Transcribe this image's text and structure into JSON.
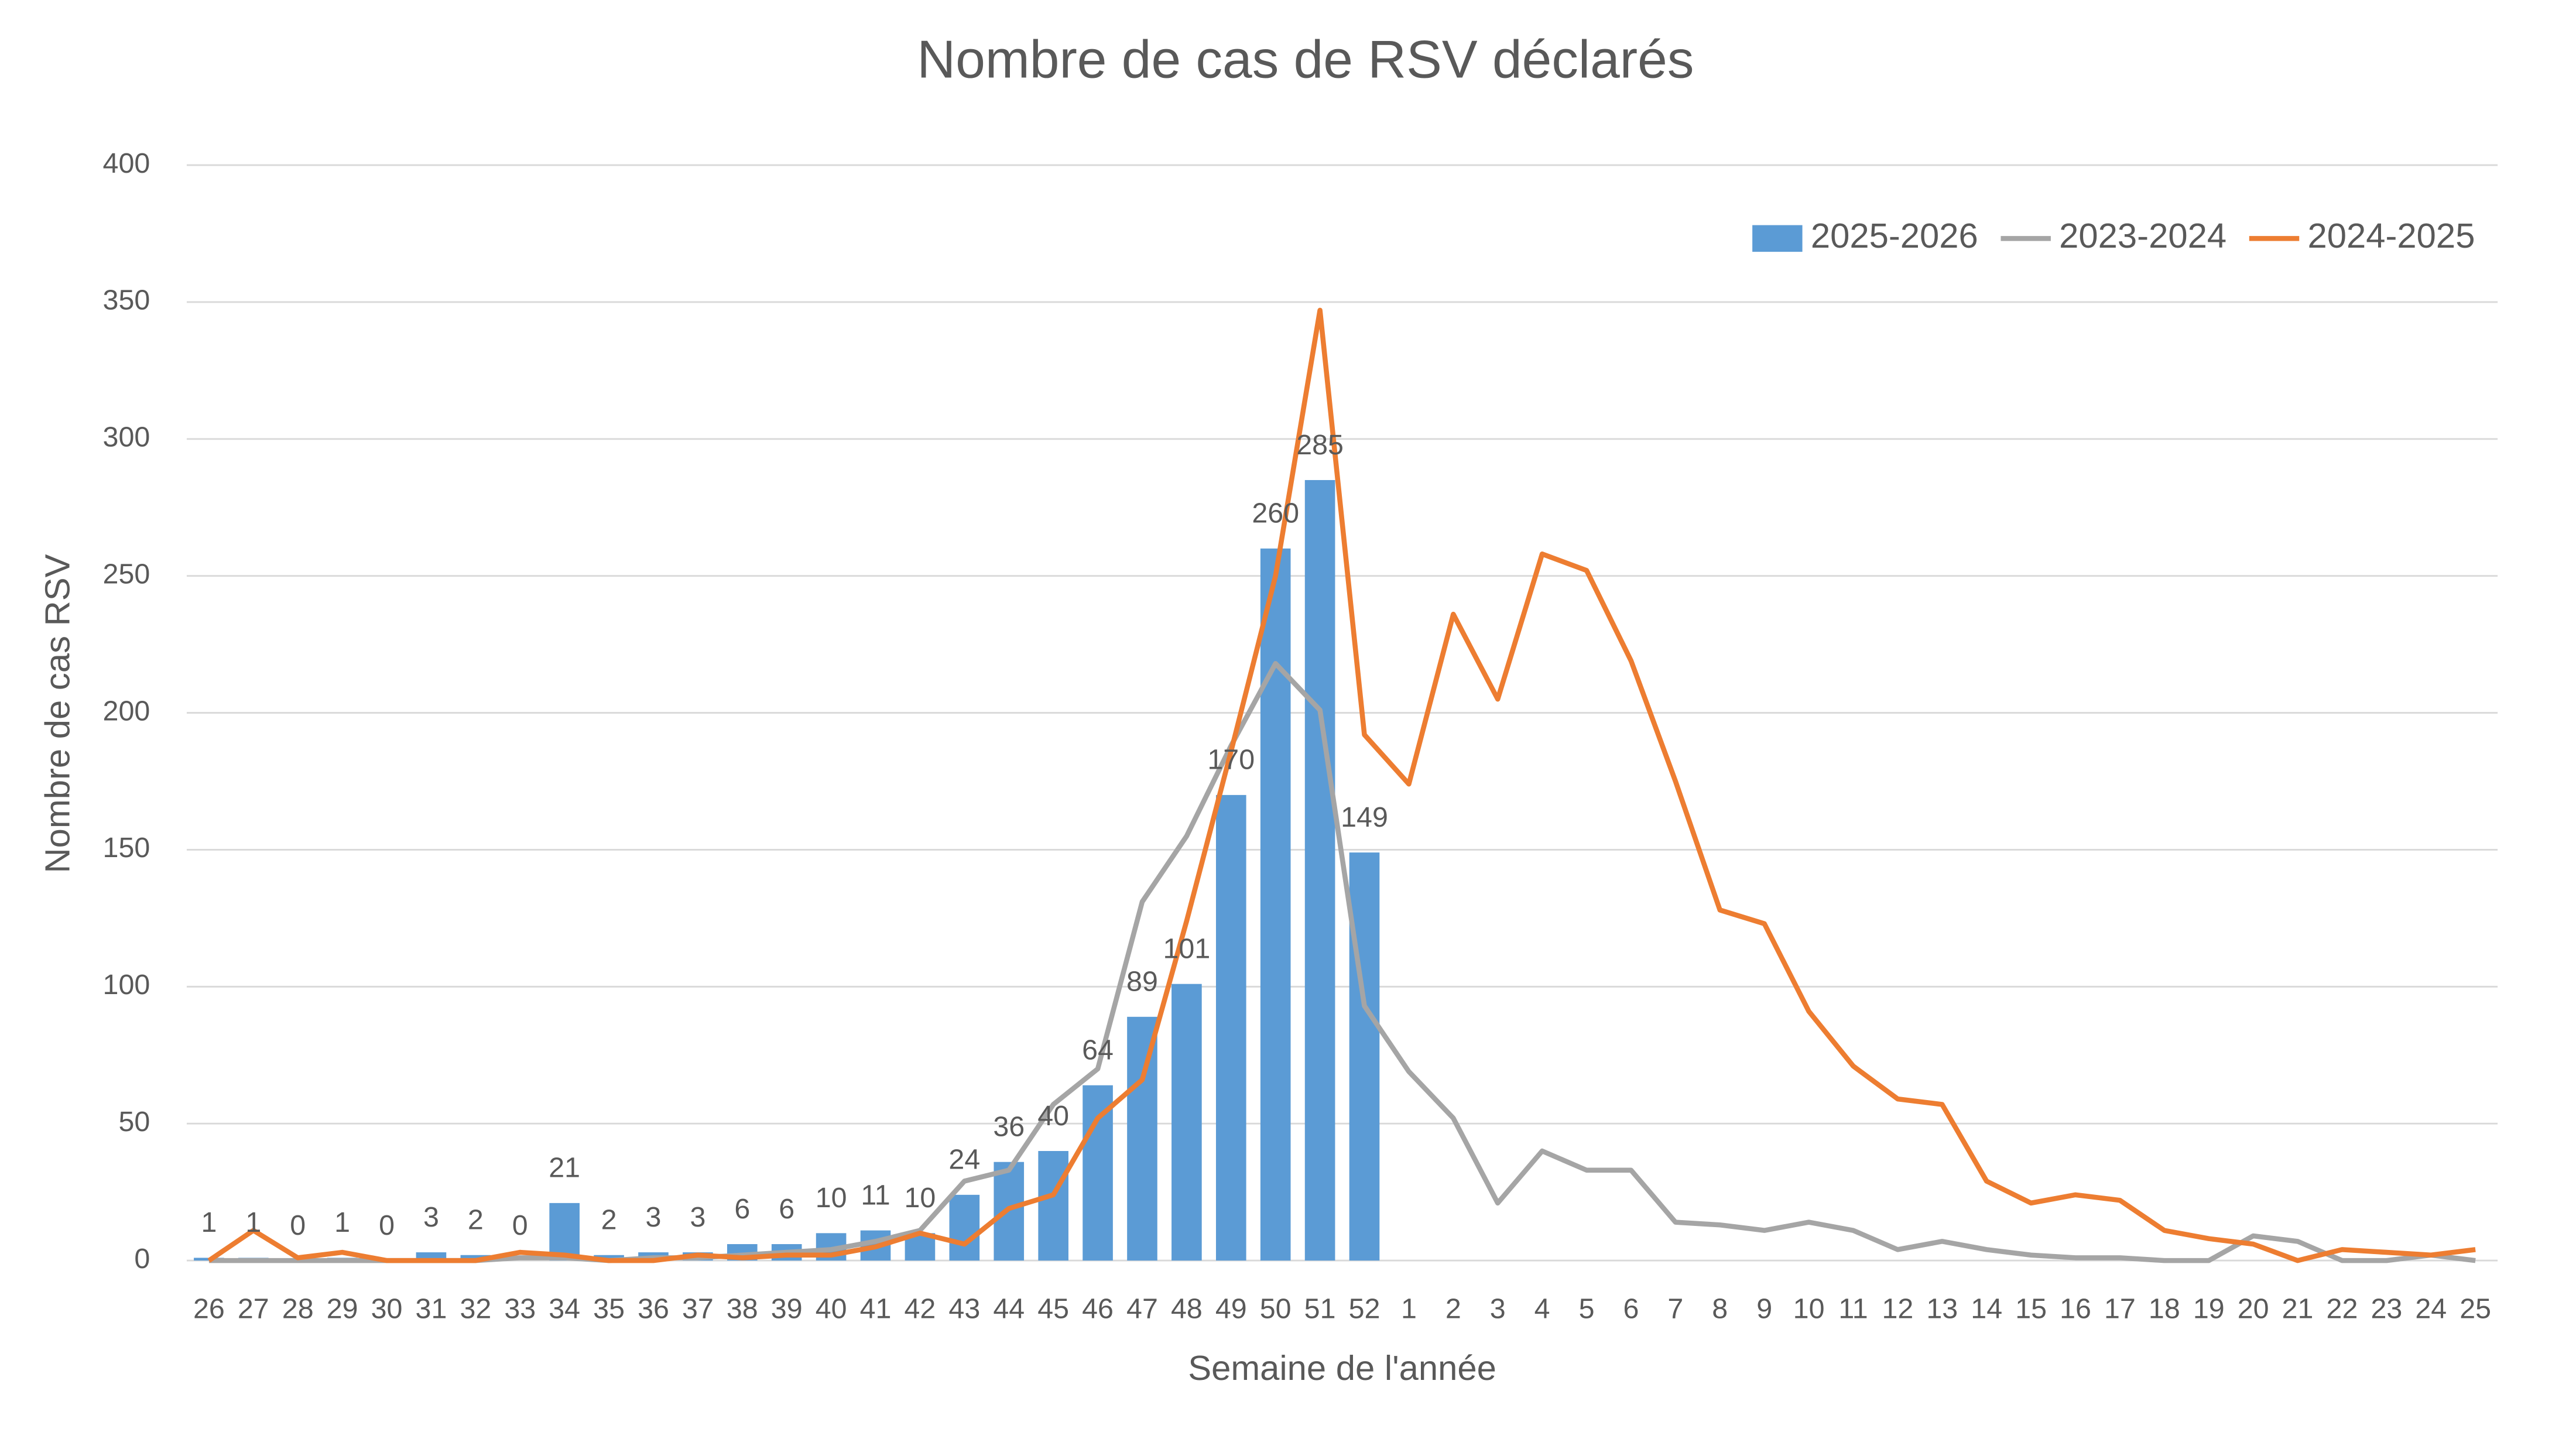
{
  "chart_data": {
    "type": "bar_line",
    "title": "Nombre de cas de RSV déclarés",
    "xlabel": "Semaine de l'année",
    "ylabel": "Nombre de cas RSV",
    "categories": [
      "26",
      "27",
      "28",
      "29",
      "30",
      "31",
      "32",
      "33",
      "34",
      "35",
      "36",
      "37",
      "38",
      "39",
      "40",
      "41",
      "42",
      "43",
      "44",
      "45",
      "46",
      "47",
      "48",
      "49",
      "50",
      "51",
      "52",
      "1",
      "2",
      "3",
      "4",
      "5",
      "6",
      "7",
      "8",
      "9",
      "10",
      "11",
      "12",
      "13",
      "14",
      "15",
      "16",
      "17",
      "18",
      "19",
      "20",
      "21",
      "22",
      "23",
      "24",
      "25"
    ],
    "series": [
      {
        "name": "2025-2026",
        "type": "bar",
        "color": "#5b9bd5",
        "values": [
          1,
          1,
          0,
          1,
          0,
          3,
          2,
          0,
          21,
          2,
          3,
          3,
          6,
          6,
          10,
          11,
          10,
          24,
          36,
          40,
          64,
          89,
          101,
          170,
          260,
          285,
          149,
          null,
          null,
          null,
          null,
          null,
          null,
          null,
          null,
          null,
          null,
          null,
          null,
          null,
          null,
          null,
          null,
          null,
          null,
          null,
          null,
          null,
          null,
          null,
          null,
          null
        ]
      },
      {
        "name": "2023-2024",
        "type": "line",
        "color": "#a5a5a5",
        "values": [
          0,
          0,
          0,
          0,
          0,
          0,
          0,
          1,
          1,
          0,
          1,
          1,
          2,
          3,
          4,
          7,
          11,
          29,
          33,
          57,
          70,
          131,
          155,
          188,
          218,
          201,
          93,
          69,
          52,
          21,
          40,
          33,
          33,
          14,
          13,
          11,
          14,
          11,
          4,
          7,
          4,
          2,
          1,
          1,
          0,
          0,
          9,
          7,
          0,
          0,
          2,
          0
        ]
      },
      {
        "name": "2024-2025",
        "type": "line",
        "color": "#ed7d31",
        "values": [
          0,
          11,
          1,
          3,
          0,
          0,
          0,
          3,
          2,
          0,
          0,
          2,
          1,
          2,
          2,
          5,
          10,
          6,
          19,
          24,
          52,
          66,
          124,
          186,
          250,
          347,
          192,
          174,
          236,
          205,
          258,
          252,
          219,
          175,
          128,
          123,
          91,
          71,
          59,
          57,
          29,
          21,
          24,
          22,
          11,
          8,
          6,
          0,
          4,
          3,
          2,
          4
        ]
      }
    ],
    "ylim": [
      0,
      400
    ],
    "yticks": [
      0,
      50,
      100,
      150,
      200,
      250,
      300,
      350,
      400
    ],
    "grid": true,
    "legend": "upper right"
  }
}
